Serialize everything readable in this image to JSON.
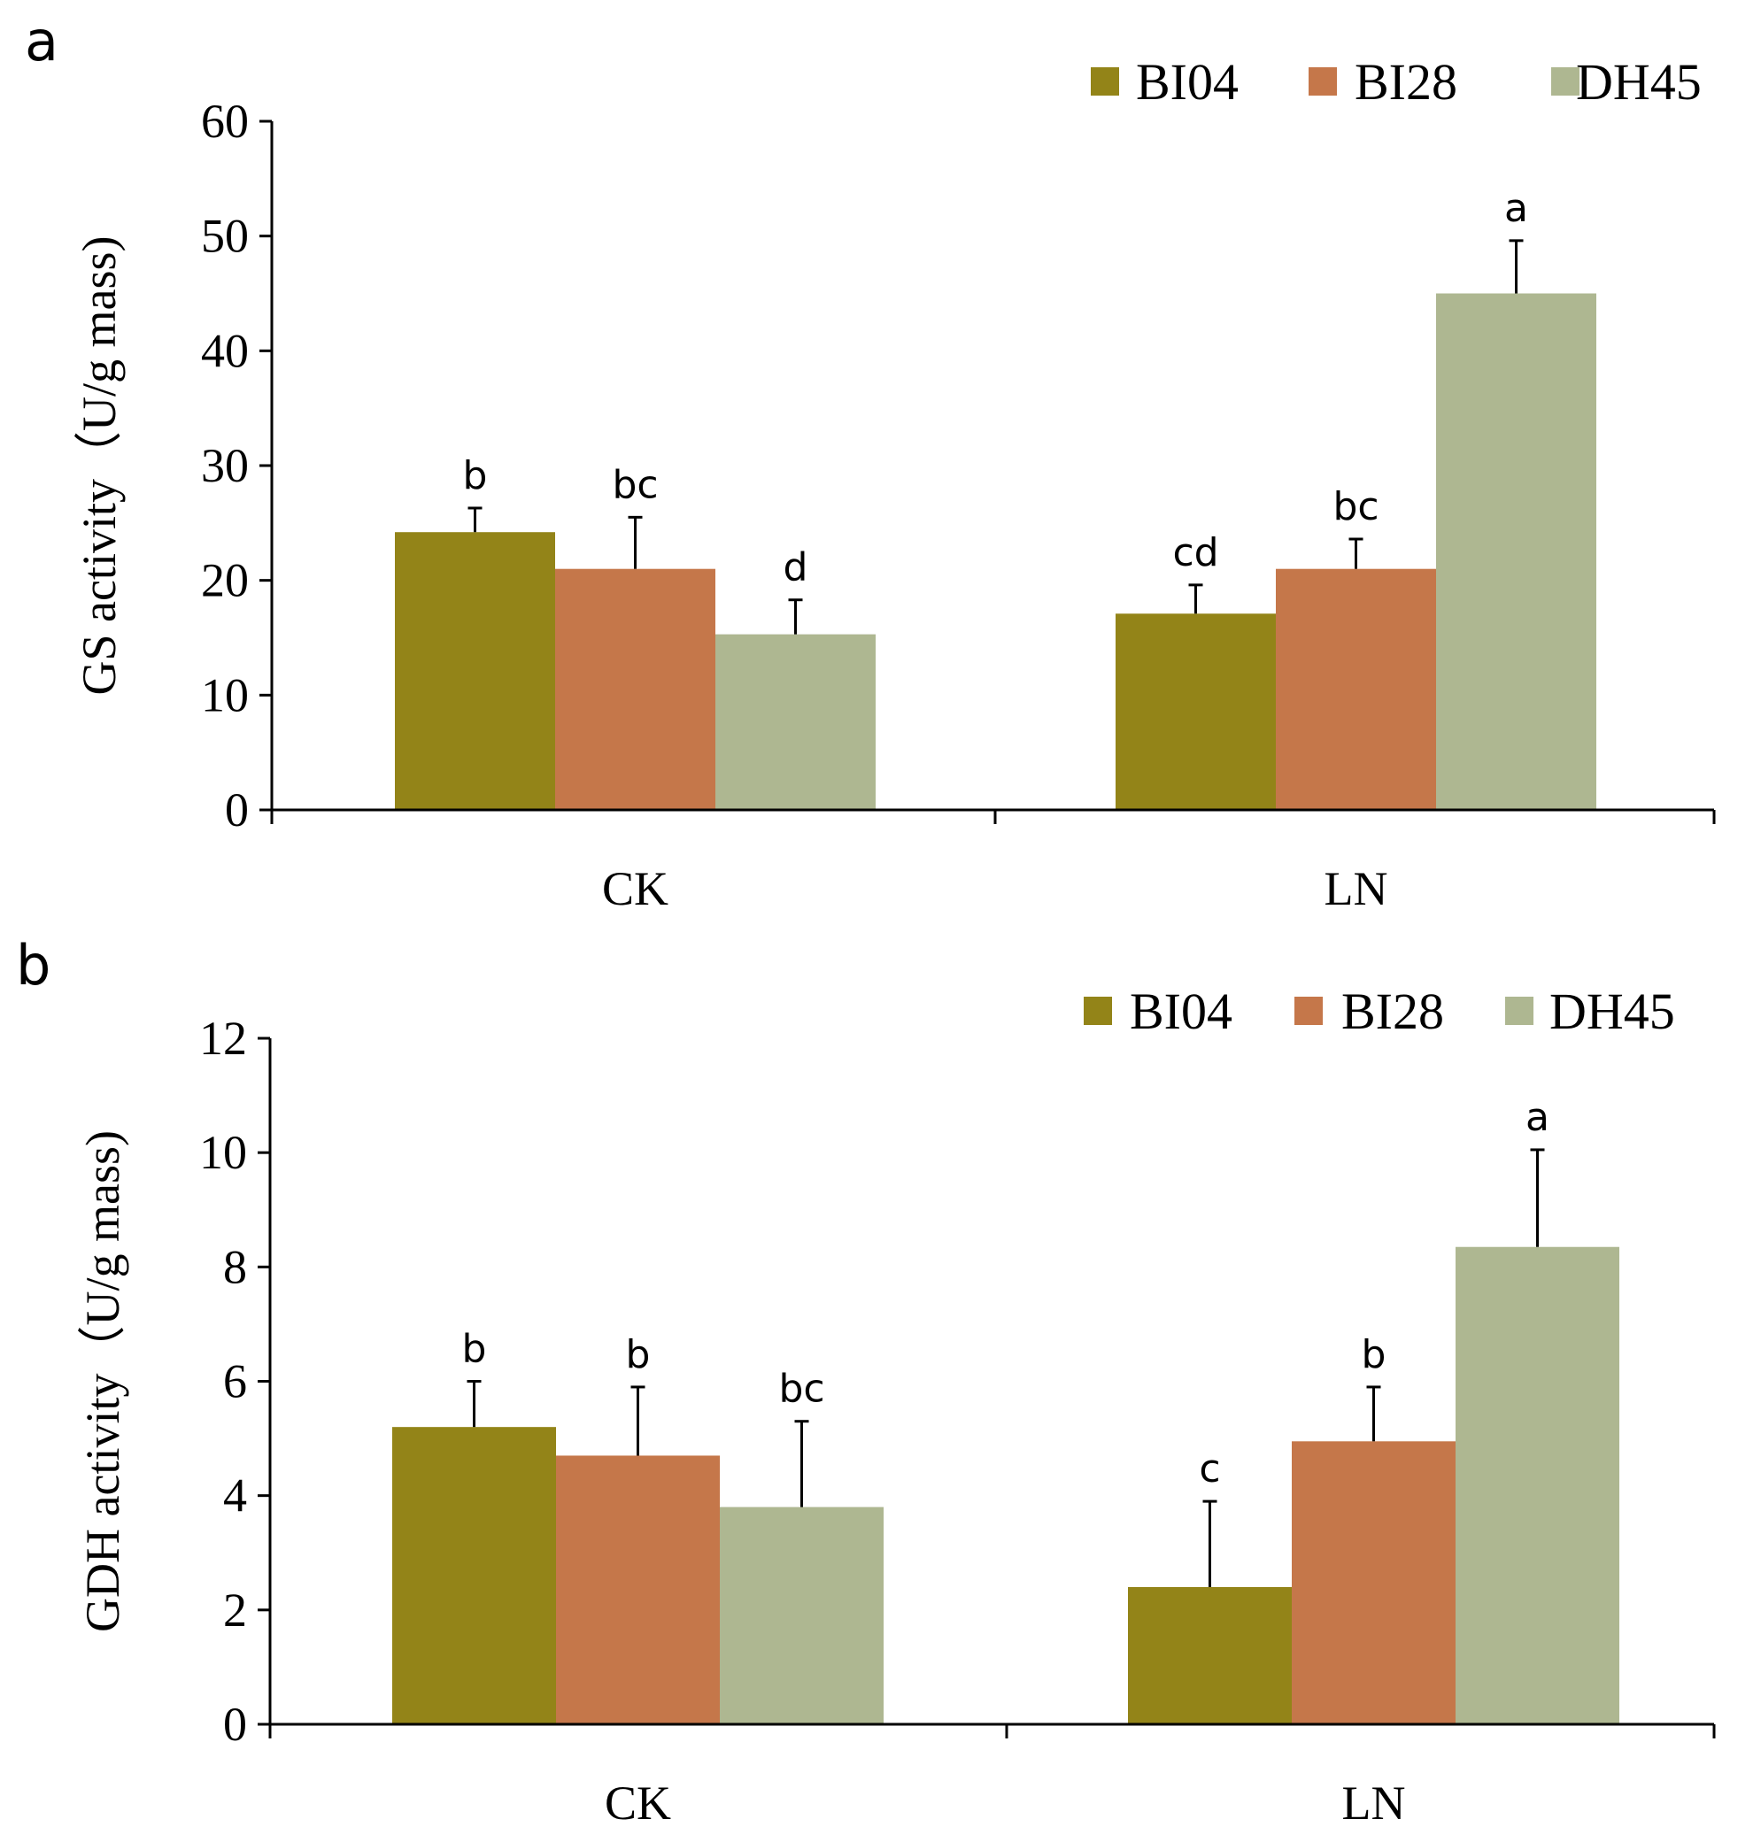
{
  "figure_labels": [
    "a",
    "b"
  ],
  "colors": {
    "BI04": "#938418",
    "BI28": "#C5774A",
    "DH45": "#AEB791"
  },
  "chart_data": [
    {
      "type": "bar",
      "panel": "a",
      "ylabel": "GS activity（U/g mass)",
      "xlabel": "",
      "ylim": [
        0,
        60
      ],
      "yticks": [
        0,
        10,
        20,
        30,
        40,
        50,
        60
      ],
      "categories": [
        "CK",
        "LN"
      ],
      "legend": [
        "BI04",
        "BI28",
        "DH45"
      ],
      "legend_position": "top-right",
      "series": [
        {
          "name": "BI04",
          "values": [
            24.2,
            17.1
          ],
          "errors": [
            2.1,
            2.5
          ],
          "labels": [
            "b",
            "cd"
          ]
        },
        {
          "name": "BI28",
          "values": [
            21.0,
            21.0
          ],
          "errors": [
            4.5,
            2.6
          ],
          "labels": [
            "bc",
            "bc"
          ]
        },
        {
          "name": "DH45",
          "values": [
            15.3,
            45.0
          ],
          "errors": [
            3.0,
            4.6
          ],
          "labels": [
            "d",
            "a"
          ]
        }
      ]
    },
    {
      "type": "bar",
      "panel": "b",
      "ylabel": "GDH activity（U/g mass)",
      "xlabel": "",
      "ylim": [
        0,
        12
      ],
      "yticks": [
        0,
        2,
        4,
        6,
        8,
        10,
        12
      ],
      "categories": [
        "CK",
        "LN"
      ],
      "legend": [
        "BI04",
        "BI28",
        "DH45"
      ],
      "legend_position": "top-right",
      "series": [
        {
          "name": "BI04",
          "values": [
            5.2,
            2.4
          ],
          "errors": [
            0.8,
            1.5
          ],
          "labels": [
            "b",
            "c"
          ]
        },
        {
          "name": "BI28",
          "values": [
            4.7,
            4.95
          ],
          "errors": [
            1.2,
            0.95
          ],
          "labels": [
            "b",
            "b"
          ]
        },
        {
          "name": "DH45",
          "values": [
            3.8,
            8.35
          ],
          "errors": [
            1.5,
            1.7
          ],
          "labels": [
            "bc",
            "a"
          ]
        }
      ]
    }
  ]
}
